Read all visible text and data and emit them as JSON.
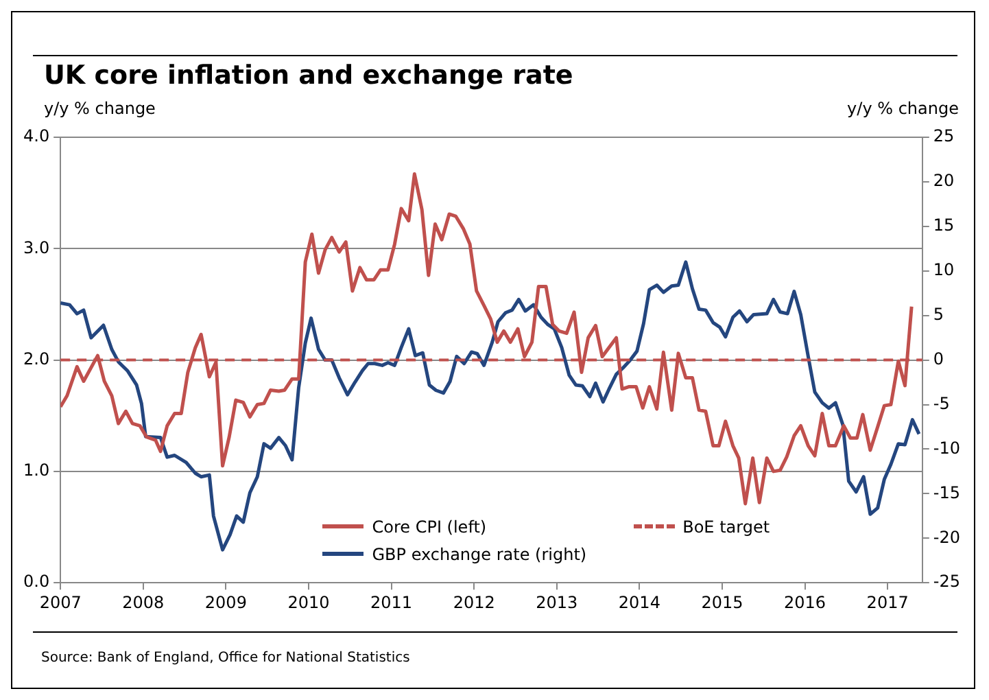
{
  "chart_data": {
    "type": "line",
    "title": "UK core inflation and exchange rate",
    "ylabel": "y/y % change",
    "y2label": "y/y % change",
    "annotations": [
      "Source: Bank of England, Office for National Statistics"
    ],
    "xlim": [
      2007,
      2017.42
    ],
    "xticks": [
      2007,
      2008,
      2009,
      2010,
      2011,
      2012,
      2013,
      2014,
      2015,
      2016,
      2017
    ],
    "ylim": [
      0,
      4
    ],
    "yticks": [
      {
        "value": 0,
        "label": "0.0"
      },
      {
        "value": 1,
        "label": "1.0"
      },
      {
        "value": 2,
        "label": "2.0"
      },
      {
        "value": 3,
        "label": "3.0"
      },
      {
        "value": 4,
        "label": "4.0"
      }
    ],
    "y2lim": [
      -25,
      25
    ],
    "y2ticks": [
      -25,
      -20,
      -15,
      -10,
      -5,
      0,
      5,
      10,
      15,
      20,
      25
    ],
    "grid": "y",
    "legend": "bottom",
    "marker": "none",
    "line_style": "solid",
    "ref_lines": [
      {
        "axis": "y",
        "value": 2,
        "label": "BoE target",
        "color": "#c0504d",
        "line_style": "dashed"
      }
    ],
    "series": [
      {
        "name": "Core CPI (left)",
        "color": "#c0504d",
        "x": [
          2007.0,
          2007.08,
          2007.2,
          2007.28,
          2007.45,
          2007.53,
          2007.62,
          2007.7,
          2007.79,
          2007.87,
          2007.96,
          2008.04,
          2008.15,
          2008.21,
          2008.29,
          2008.38,
          2008.46,
          2008.54,
          2008.63,
          2008.7,
          2008.8,
          2008.88,
          2008.96,
          2009.04,
          2009.12,
          2009.21,
          2009.29,
          2009.38,
          2009.46,
          2009.54,
          2009.64,
          2009.71,
          2009.8,
          2009.88,
          2009.96,
          2010.04,
          2010.12,
          2010.2,
          2010.28,
          2010.37,
          2010.45,
          2010.53,
          2010.62,
          2010.7,
          2010.79,
          2010.87,
          2010.96,
          2011.04,
          2011.12,
          2011.21,
          2011.28,
          2011.37,
          2011.45,
          2011.53,
          2011.61,
          2011.7,
          2011.78,
          2011.87,
          2011.95,
          2012.03,
          2012.12,
          2012.2,
          2012.28,
          2012.36,
          2012.44,
          2012.53,
          2012.61,
          2012.7,
          2012.78,
          2012.87,
          2012.95,
          2013.03,
          2013.12,
          2013.21,
          2013.3,
          2013.38,
          2013.47,
          2013.55,
          2013.63,
          2013.72,
          2013.79,
          2013.87,
          2013.96,
          2014.04,
          2014.12,
          2014.21,
          2014.29,
          2014.39,
          2014.47,
          2014.56,
          2014.64,
          2014.72,
          2014.8,
          2014.89,
          2014.96,
          2015.04,
          2015.13,
          2015.2,
          2015.28,
          2015.37,
          2015.45,
          2015.54,
          2015.62,
          2015.7,
          2015.78,
          2015.87,
          2015.95,
          2016.04,
          2016.12,
          2016.21,
          2016.29,
          2016.37,
          2016.47,
          2016.55,
          2016.63,
          2016.7,
          2016.79,
          2016.88,
          2016.96,
          2017.04,
          2017.13,
          2017.21,
          2017.29
        ],
        "values": [
          1.58,
          1.68,
          1.94,
          1.81,
          2.04,
          1.81,
          1.68,
          1.43,
          1.54,
          1.43,
          1.41,
          1.31,
          1.28,
          1.18,
          1.41,
          1.52,
          1.52,
          1.89,
          2.11,
          2.23,
          1.85,
          1.98,
          1.05,
          1.31,
          1.64,
          1.62,
          1.49,
          1.6,
          1.61,
          1.73,
          1.72,
          1.73,
          1.83,
          1.83,
          2.88,
          3.13,
          2.78,
          2.99,
          3.1,
          2.97,
          3.06,
          2.62,
          2.83,
          2.72,
          2.72,
          2.81,
          2.81,
          3.04,
          3.36,
          3.25,
          3.67,
          3.35,
          2.76,
          3.22,
          3.08,
          3.31,
          3.29,
          3.18,
          3.04,
          2.62,
          2.49,
          2.37,
          2.16,
          2.26,
          2.16,
          2.28,
          2.03,
          2.16,
          2.66,
          2.66,
          2.32,
          2.26,
          2.24,
          2.43,
          1.89,
          2.2,
          2.31,
          2.03,
          2.11,
          2.2,
          1.74,
          1.76,
          1.76,
          1.57,
          1.76,
          1.56,
          2.07,
          1.55,
          2.06,
          1.84,
          1.84,
          1.55,
          1.54,
          1.23,
          1.23,
          1.45,
          1.23,
          1.12,
          0.71,
          1.12,
          0.72,
          1.12,
          1.0,
          1.01,
          1.13,
          1.32,
          1.41,
          1.23,
          1.14,
          1.52,
          1.23,
          1.23,
          1.41,
          1.3,
          1.3,
          1.51,
          1.19,
          1.4,
          1.59,
          1.6,
          1.99,
          1.77,
          2.48
        ]
      },
      {
        "name": "GBP exchange rate (right)",
        "color": "#24467f",
        "axis": "y2",
        "x": [
          2007.0,
          2007.11,
          2007.2,
          2007.28,
          2007.37,
          2007.52,
          2007.62,
          2007.7,
          2007.81,
          2007.92,
          2007.98,
          2008.03,
          2008.21,
          2008.29,
          2008.38,
          2008.52,
          2008.63,
          2008.7,
          2008.8,
          2008.85,
          2008.96,
          2009.05,
          2009.13,
          2009.21,
          2009.29,
          2009.38,
          2009.46,
          2009.54,
          2009.64,
          2009.72,
          2009.8,
          2009.88,
          2009.96,
          2010.03,
          2010.12,
          2010.2,
          2010.28,
          2010.37,
          2010.47,
          2010.56,
          2010.65,
          2010.72,
          2010.8,
          2010.89,
          2010.96,
          2011.04,
          2011.12,
          2011.21,
          2011.29,
          2011.38,
          2011.46,
          2011.54,
          2011.63,
          2011.71,
          2011.79,
          2011.88,
          2011.97,
          2012.04,
          2012.12,
          2012.22,
          2012.29,
          2012.38,
          2012.46,
          2012.54,
          2012.62,
          2012.72,
          2012.81,
          2012.89,
          2012.97,
          2013.06,
          2013.15,
          2013.23,
          2013.31,
          2013.4,
          2013.47,
          2013.56,
          2013.63,
          2013.72,
          2013.8,
          2013.88,
          2013.97,
          2014.05,
          2014.12,
          2014.21,
          2014.29,
          2014.39,
          2014.47,
          2014.56,
          2014.64,
          2014.72,
          2014.8,
          2014.89,
          2014.97,
          2015.04,
          2015.13,
          2015.21,
          2015.3,
          2015.38,
          2015.54,
          2015.62,
          2015.7,
          2015.79,
          2015.87,
          2015.95,
          2016.04,
          2016.12,
          2016.21,
          2016.29,
          2016.37,
          2016.46,
          2016.53,
          2016.62,
          2016.71,
          2016.79,
          2016.88,
          2016.96,
          2017.04,
          2017.13,
          2017.21,
          2017.3,
          2017.38
        ],
        "values": [
          6.4,
          6.2,
          5.2,
          5.6,
          2.5,
          3.9,
          1.2,
          -0.2,
          -1.2,
          -2.8,
          -4.9,
          -8.6,
          -8.7,
          -10.9,
          -10.7,
          -11.5,
          -12.7,
          -13.1,
          -12.9,
          -17.5,
          -21.3,
          -19.6,
          -17.5,
          -18.2,
          -14.9,
          -13.1,
          -9.4,
          -9.9,
          -8.7,
          -9.6,
          -11.2,
          -3.1,
          1.9,
          4.7,
          1.2,
          0,
          0,
          -2,
          -3.9,
          -2.5,
          -1.2,
          -0.4,
          -0.4,
          -0.6,
          -0.3,
          -0.6,
          1.4,
          3.5,
          0.5,
          0.8,
          -2.8,
          -3.4,
          -3.7,
          -2.4,
          0.4,
          -0.4,
          0.9,
          0.7,
          -0.6,
          2,
          4.3,
          5.3,
          5.6,
          6.8,
          5.5,
          6.2,
          4.8,
          4,
          3.5,
          1.4,
          -1.7,
          -2.8,
          -2.9,
          -4.1,
          -2.6,
          -4.7,
          -3.3,
          -1.6,
          -0.9,
          -0.1,
          1.0,
          4.1,
          7.9,
          8.4,
          7.6,
          8.3,
          8.4,
          11,
          8,
          5.7,
          5.6,
          4.2,
          3.7,
          2.6,
          4.8,
          5.5,
          4.3,
          5.1,
          5.2,
          6.8,
          5.4,
          5.2,
          7.7,
          5.1,
          0.4,
          -3.6,
          -4.8,
          -5.4,
          -4.8,
          -7.3,
          -13.6,
          -14.8,
          -13.1,
          -17.3,
          -16.6,
          -13.4,
          -11.7,
          -9.4,
          -9.5,
          -6.7,
          -8.3
        ]
      }
    ]
  }
}
